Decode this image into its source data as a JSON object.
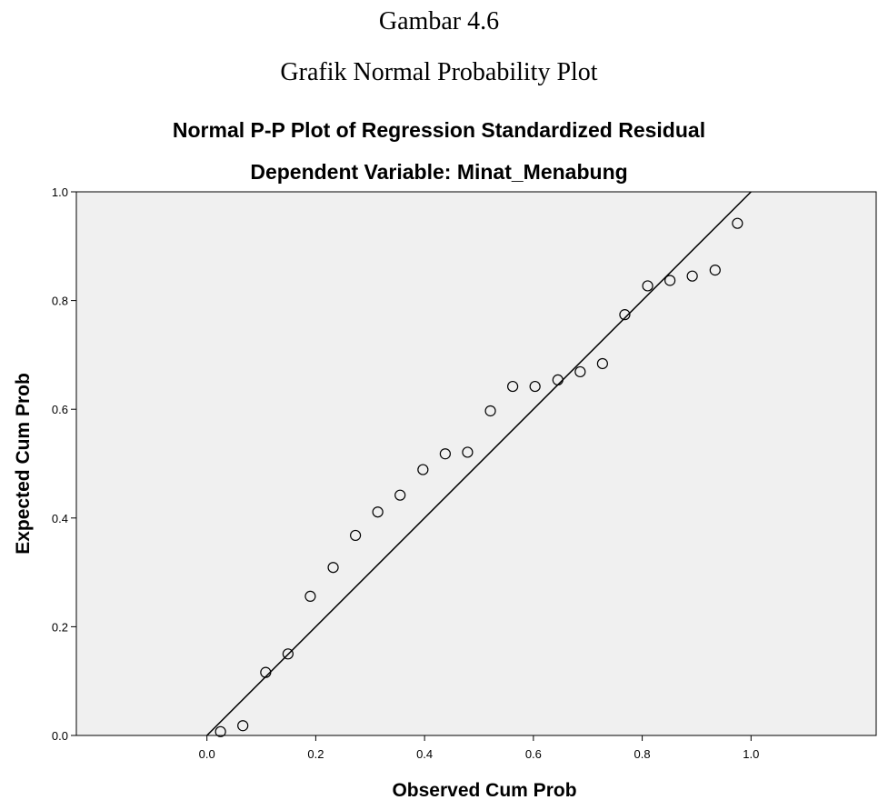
{
  "caption": {
    "figure_number": "Gambar 4.6",
    "figure_title": "Grafik Normal Probability Plot"
  },
  "chart_data": {
    "type": "scatter",
    "title": "Normal P-P Plot of Regression Standardized Residual",
    "subtitle": "Dependent Variable: Minat_Menabung",
    "xlabel": "Observed Cum Prob",
    "ylabel": "Expected Cum Prob",
    "xlim": [
      -0.24,
      1.23
    ],
    "ylim": [
      0.0,
      1.0
    ],
    "x_ticks": [
      "0.0",
      "0.2",
      "0.4",
      "0.6",
      "0.8",
      "1.0"
    ],
    "y_ticks": [
      "0.0",
      "0.2",
      "0.4",
      "0.6",
      "0.8",
      "1.0"
    ],
    "grid": false,
    "reference_line": {
      "from": [
        0,
        0
      ],
      "to": [
        1,
        1
      ]
    },
    "plot_background": "#f0f0f0",
    "marker": "open-circle",
    "points": [
      {
        "x": 0.025,
        "y": 0.007
      },
      {
        "x": 0.066,
        "y": 0.018
      },
      {
        "x": 0.108,
        "y": 0.116
      },
      {
        "x": 0.149,
        "y": 0.15
      },
      {
        "x": 0.19,
        "y": 0.256
      },
      {
        "x": 0.232,
        "y": 0.309
      },
      {
        "x": 0.273,
        "y": 0.368
      },
      {
        "x": 0.314,
        "y": 0.411
      },
      {
        "x": 0.355,
        "y": 0.442
      },
      {
        "x": 0.397,
        "y": 0.489
      },
      {
        "x": 0.438,
        "y": 0.518
      },
      {
        "x": 0.479,
        "y": 0.521
      },
      {
        "x": 0.521,
        "y": 0.597
      },
      {
        "x": 0.562,
        "y": 0.642
      },
      {
        "x": 0.603,
        "y": 0.642
      },
      {
        "x": 0.645,
        "y": 0.654
      },
      {
        "x": 0.686,
        "y": 0.669
      },
      {
        "x": 0.727,
        "y": 0.684
      },
      {
        "x": 0.768,
        "y": 0.774
      },
      {
        "x": 0.81,
        "y": 0.827
      },
      {
        "x": 0.851,
        "y": 0.837
      },
      {
        "x": 0.892,
        "y": 0.845
      },
      {
        "x": 0.934,
        "y": 0.856
      },
      {
        "x": 0.975,
        "y": 0.942
      }
    ]
  }
}
